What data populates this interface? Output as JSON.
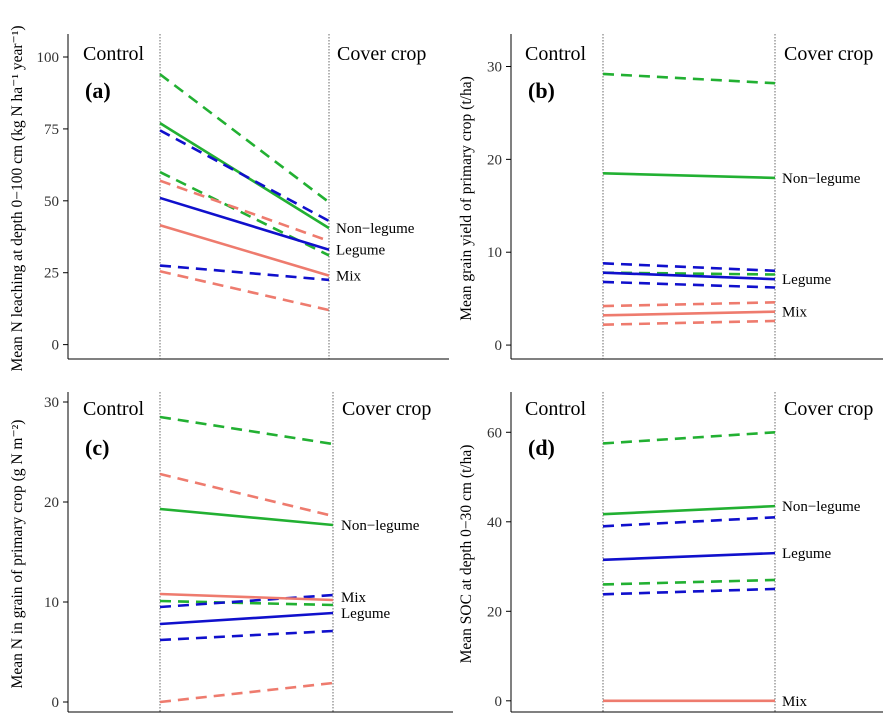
{
  "chart_data": [
    {
      "type": "line",
      "panel": "(a)",
      "ylabel": "Mean N leaching at depth 0−100 cm (kg N ha⁻¹ year⁻¹)",
      "x": [
        "Control",
        "Cover crop"
      ],
      "ylim": [
        -5,
        108
      ],
      "yticks": [
        0,
        25,
        50,
        75,
        100
      ],
      "series": [
        {
          "name": "Non−legume",
          "color": "#22b032",
          "values": [
            77,
            40.5
          ]
        },
        {
          "color": "#22b032",
          "dashed": true,
          "values": [
            94,
            49.5
          ]
        },
        {
          "color": "#22b032",
          "dashed": true,
          "values": [
            60,
            31
          ]
        },
        {
          "name": "Legume",
          "color": "#1010cc",
          "values": [
            51,
            33
          ]
        },
        {
          "color": "#1010cc",
          "dashed": true,
          "values": [
            74.5,
            43
          ]
        },
        {
          "color": "#1010cc",
          "dashed": true,
          "values": [
            27.5,
            22.5
          ]
        },
        {
          "name": "Mix",
          "color": "#ee7b6e",
          "values": [
            41.5,
            24
          ]
        },
        {
          "color": "#ee7b6e",
          "dashed": true,
          "values": [
            57,
            36
          ]
        },
        {
          "color": "#ee7b6e",
          "dashed": true,
          "values": [
            25.5,
            12
          ]
        }
      ],
      "labels": [
        {
          "text": "Non−legume",
          "y": 40.5
        },
        {
          "text": "Legume",
          "y": 33
        },
        {
          "text": "Mix",
          "y": 24
        }
      ]
    },
    {
      "type": "line",
      "panel": "(b)",
      "ylabel": "Mean grain yield of primary crop (t/ha)",
      "x": [
        "Control",
        "Cover crop"
      ],
      "ylim": [
        -1.5,
        33.5
      ],
      "yticks": [
        0,
        10,
        20,
        30
      ],
      "series": [
        {
          "name": "Non−legume",
          "color": "#22b032",
          "values": [
            18.5,
            18
          ]
        },
        {
          "color": "#22b032",
          "dashed": true,
          "values": [
            29.2,
            28.2
          ]
        },
        {
          "color": "#22b032",
          "dashed": true,
          "values": [
            7.8,
            7.6
          ]
        },
        {
          "name": "Legume",
          "color": "#1010cc",
          "values": [
            7.8,
            7.1
          ]
        },
        {
          "color": "#1010cc",
          "dashed": true,
          "values": [
            8.8,
            8
          ]
        },
        {
          "color": "#1010cc",
          "dashed": true,
          "values": [
            6.8,
            6.2
          ]
        },
        {
          "name": "Mix",
          "color": "#ee7b6e",
          "values": [
            3.2,
            3.6
          ]
        },
        {
          "color": "#ee7b6e",
          "dashed": true,
          "values": [
            4.2,
            4.6
          ]
        },
        {
          "color": "#ee7b6e",
          "dashed": true,
          "values": [
            2.2,
            2.6
          ]
        }
      ],
      "labels": [
        {
          "text": "Non−legume",
          "y": 18
        },
        {
          "text": "Legume",
          "y": 7.1
        },
        {
          "text": "Mix",
          "y": 3.6
        }
      ]
    },
    {
      "type": "line",
      "panel": "(c)",
      "ylabel": "Mean N in grain of primary crop (g N m⁻²)",
      "x": [
        "Control",
        "Cover crop"
      ],
      "ylim": [
        -1,
        31
      ],
      "yticks": [
        0,
        10,
        20,
        30
      ],
      "series": [
        {
          "name": "Non−legume",
          "color": "#22b032",
          "values": [
            19.3,
            17.7
          ]
        },
        {
          "color": "#22b032",
          "dashed": true,
          "values": [
            28.5,
            25.8
          ]
        },
        {
          "color": "#22b032",
          "dashed": true,
          "values": [
            10.1,
            9.7
          ]
        },
        {
          "name": "Legume",
          "color": "#1010cc",
          "values": [
            7.8,
            8.9
          ]
        },
        {
          "color": "#1010cc",
          "dashed": true,
          "values": [
            9.5,
            10.7
          ]
        },
        {
          "color": "#1010cc",
          "dashed": true,
          "values": [
            6.2,
            7.1
          ]
        },
        {
          "name": "Mix",
          "color": "#ee7b6e",
          "values": [
            10.8,
            10.2
          ]
        },
        {
          "color": "#ee7b6e",
          "dashed": true,
          "values": [
            22.8,
            18.6
          ]
        },
        {
          "color": "#ee7b6e",
          "dashed": true,
          "values": [
            0,
            1.9
          ]
        }
      ],
      "labels": [
        {
          "text": "Non−legume",
          "y": 17.7
        },
        {
          "text": "Mix",
          "y": 10.5
        },
        {
          "text": "Legume",
          "y": 8.9
        }
      ]
    },
    {
      "type": "line",
      "panel": "(d)",
      "ylabel": "Mean SOC at depth 0−30 cm (t/ha)",
      "x": [
        "Control",
        "Cover crop"
      ],
      "ylim": [
        -2.5,
        69
      ],
      "yticks": [
        0,
        20,
        40,
        60
      ],
      "series": [
        {
          "name": "Non−legume",
          "color": "#22b032",
          "values": [
            41.7,
            43.5
          ]
        },
        {
          "color": "#22b032",
          "dashed": true,
          "values": [
            57.5,
            60
          ]
        },
        {
          "color": "#22b032",
          "dashed": true,
          "values": [
            26,
            27
          ]
        },
        {
          "name": "Legume",
          "color": "#1010cc",
          "values": [
            31.5,
            33
          ]
        },
        {
          "color": "#1010cc",
          "dashed": true,
          "values": [
            39,
            41
          ]
        },
        {
          "color": "#1010cc",
          "dashed": true,
          "values": [
            23.8,
            25
          ]
        },
        {
          "name": "Mix",
          "color": "#ee7b6e",
          "values": [
            0,
            0
          ]
        }
      ],
      "labels": [
        {
          "text": "Non−legume",
          "y": 43.5
        },
        {
          "text": "Legume",
          "y": 33
        },
        {
          "text": "Mix",
          "y": 0
        }
      ]
    }
  ]
}
